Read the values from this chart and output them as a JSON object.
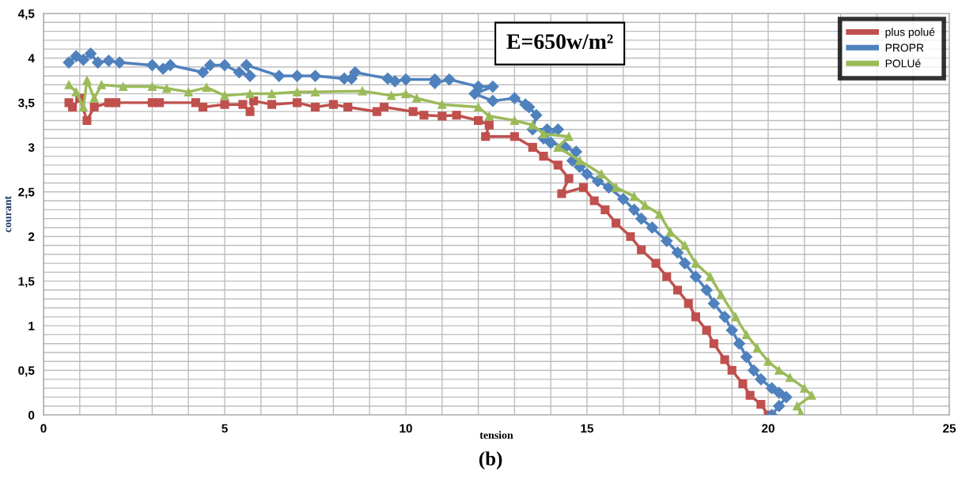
{
  "chart_data": {
    "type": "line",
    "title": "E=650w/m²",
    "xlabel": "tension",
    "ylabel": "courant",
    "annotations": [
      "(b)"
    ],
    "xlim": [
      0,
      25
    ],
    "xticks": [
      0,
      5,
      10,
      15,
      20,
      25
    ],
    "ylim": [
      0,
      4.5
    ],
    "yticks": [
      {
        "value": 0,
        "label": "0"
      },
      {
        "value": 0.5,
        "label": "0,5"
      },
      {
        "value": 1,
        "label": "1"
      },
      {
        "value": 1.5,
        "label": "1,5"
      },
      {
        "value": 2,
        "label": "2"
      },
      {
        "value": 2.5,
        "label": "2,5"
      },
      {
        "value": 3,
        "label": "3"
      },
      {
        "value": 3.5,
        "label": "3,5"
      },
      {
        "value": 4,
        "label": "4"
      },
      {
        "value": 4.5,
        "label": "4,5"
      }
    ],
    "grid": true,
    "legend": "top right",
    "line_style": "solid",
    "series": [
      {
        "name": "plus polué",
        "color": "#c0504d",
        "marker": "square",
        "x": [
          0.7,
          0.8,
          1,
          1.2,
          1.4,
          1.8,
          2,
          3,
          3.2,
          4.2,
          4.4,
          5,
          5.5,
          5.7,
          5.8,
          6.3,
          7,
          7.5,
          8,
          8.4,
          9.2,
          9.4,
          10.2,
          10.5,
          11,
          11.4,
          12,
          12.3,
          12.2,
          13,
          13.5,
          13.8,
          14.2,
          14.5,
          14.3,
          14.9,
          15.2,
          15.5,
          15.8,
          16.2,
          16.5,
          16.9,
          17.2,
          17.5,
          17.8,
          18,
          18.3,
          18.5,
          18.8,
          19,
          19.3,
          19.5,
          19.8,
          20
        ],
        "values": [
          3.5,
          3.45,
          3.55,
          3.3,
          3.45,
          3.5,
          3.5,
          3.5,
          3.5,
          3.5,
          3.45,
          3.48,
          3.48,
          3.4,
          3.52,
          3.48,
          3.5,
          3.45,
          3.48,
          3.45,
          3.4,
          3.45,
          3.4,
          3.36,
          3.35,
          3.36,
          3.3,
          3.25,
          3.12,
          3.12,
          3.0,
          2.9,
          2.8,
          2.65,
          2.48,
          2.55,
          2.4,
          2.3,
          2.15,
          2.0,
          1.85,
          1.7,
          1.55,
          1.4,
          1.25,
          1.1,
          0.95,
          0.8,
          0.62,
          0.5,
          0.35,
          0.22,
          0.12,
          0.0
        ]
      },
      {
        "name": "PROPR",
        "color": "#4f81bd",
        "marker": "diamond",
        "x": [
          0.7,
          0.9,
          1.1,
          1.3,
          1.5,
          1.8,
          2.1,
          3,
          3.3,
          3.5,
          4.4,
          4.6,
          5,
          5.4,
          5.7,
          5.6,
          6.5,
          7,
          7.5,
          8.3,
          8.5,
          8.6,
          9.5,
          9.7,
          10,
          10.8,
          10.8,
          11.2,
          12,
          12.4,
          11.9,
          12.4,
          13,
          13.3,
          13.4,
          13.6,
          13.5,
          13.9,
          14.2,
          13.8,
          14,
          14.4,
          14.7,
          14.6,
          14.8,
          15,
          15.3,
          15.6,
          16,
          16.3,
          16.5,
          16.8,
          17.2,
          17.5,
          17.7,
          18,
          18.3,
          18.5,
          18.8,
          19,
          19.2,
          19.4,
          19.6,
          19.8,
          20.1,
          20.3,
          20.5,
          20.3,
          20.1
        ],
        "values": [
          3.95,
          4.02,
          3.98,
          4.05,
          3.95,
          3.97,
          3.95,
          3.92,
          3.88,
          3.92,
          3.84,
          3.92,
          3.92,
          3.84,
          3.8,
          3.92,
          3.8,
          3.8,
          3.8,
          3.77,
          3.77,
          3.84,
          3.77,
          3.74,
          3.76,
          3.76,
          3.72,
          3.76,
          3.68,
          3.68,
          3.6,
          3.52,
          3.55,
          3.48,
          3.45,
          3.36,
          3.2,
          3.2,
          3.2,
          3.1,
          3.05,
          3.0,
          2.95,
          2.85,
          2.78,
          2.7,
          2.62,
          2.55,
          2.42,
          2.3,
          2.2,
          2.1,
          1.95,
          1.82,
          1.7,
          1.55,
          1.4,
          1.25,
          1.1,
          0.95,
          0.8,
          0.65,
          0.5,
          0.4,
          0.3,
          0.25,
          0.2,
          0.1,
          0.0
        ]
      },
      {
        "name": "POLUé",
        "color": "#9bbb59",
        "marker": "triangle",
        "x": [
          0.7,
          0.9,
          1.1,
          1.2,
          1.4,
          1.6,
          2.2,
          3,
          3.4,
          4,
          4.5,
          5,
          5.7,
          6.3,
          7,
          7.5,
          8.8,
          9.6,
          10,
          10.3,
          11,
          12,
          12.3,
          13,
          13.5,
          13.8,
          14.5,
          14.2,
          14.8,
          15.4,
          15.8,
          16.3,
          16.6,
          17,
          17.3,
          17.7,
          18,
          18.4,
          18.7,
          19.1,
          19.4,
          19.7,
          20,
          20.3,
          20.6,
          21,
          21.2,
          20.8,
          20.9
        ],
        "values": [
          3.7,
          3.62,
          3.45,
          3.75,
          3.55,
          3.7,
          3.68,
          3.68,
          3.66,
          3.62,
          3.67,
          3.58,
          3.6,
          3.6,
          3.62,
          3.62,
          3.63,
          3.58,
          3.6,
          3.55,
          3.48,
          3.45,
          3.35,
          3.3,
          3.25,
          3.15,
          3.12,
          3.0,
          2.85,
          2.7,
          2.55,
          2.45,
          2.35,
          2.25,
          2.05,
          1.9,
          1.7,
          1.55,
          1.35,
          1.1,
          0.9,
          0.75,
          0.6,
          0.5,
          0.42,
          0.3,
          0.22,
          0.1,
          0.02
        ]
      }
    ]
  }
}
